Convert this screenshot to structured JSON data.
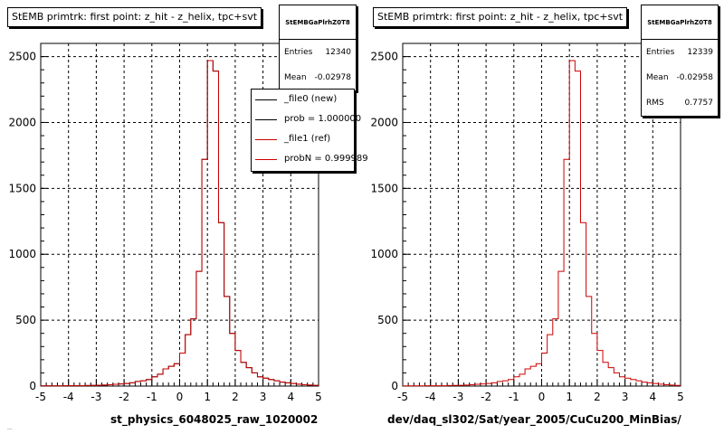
{
  "colors": {
    "ref_line": "#cc0000",
    "new_line": "#000000",
    "grid": "#000000"
  },
  "footer_text": "...",
  "panels": [
    {
      "title": "StEMB primtrk: first point: z_hit - z_helix, tpc+svt",
      "stats": {
        "name": "StEMBGaPlrhZ0T8",
        "rows": [
          {
            "label": "Entries",
            "value": "12340"
          },
          {
            "label": "Mean",
            "value": "-0.02978"
          }
        ]
      },
      "legend": [
        {
          "label": "_file0 (new)",
          "color": "#000000"
        },
        {
          "label": "prob = 1.000000",
          "color": "#000000"
        },
        {
          "label": "_file1 (ref)",
          "color": "#cc0000"
        },
        {
          "label": "probN = 0.999989",
          "color": "#cc0000"
        }
      ],
      "xtitle": "st_physics_6048025_raw_1020002"
    },
    {
      "title": "StEMB primtrk: first point: z_hit - z_helix, tpc+svt",
      "stats": {
        "name": "StEMBGaPlrhZ0T8",
        "rows": [
          {
            "label": "Entries",
            "value": "12339"
          },
          {
            "label": "Mean",
            "value": "-0.02958"
          },
          {
            "label": "RMS",
            "value": "0.7757"
          }
        ]
      },
      "legend": [],
      "xtitle": "dev/daq_sl302/Sat/year_2005/CuCu200_MinBias/"
    }
  ],
  "chart_data": [
    {
      "type": "bar",
      "subtype": "histogram-step",
      "title": "StEMB primtrk: first point: z_hit - z_helix, tpc+svt",
      "xlabel": "st_physics_6048025_raw_1020002",
      "ylabel": "",
      "xlim": [
        -5,
        5
      ],
      "ylim": [
        0,
        2600
      ],
      "xticks": [
        -5,
        -4,
        -3,
        -2,
        -1,
        0,
        1,
        2,
        3,
        4,
        5
      ],
      "yticks": [
        0,
        500,
        1000,
        1500,
        2000,
        2500
      ],
      "grid": true,
      "bin_width": 0.2,
      "bin_edges_start": -5,
      "series": [
        {
          "name": "_file0 (new)",
          "values": [
            2,
            2,
            2,
            2,
            3,
            3,
            3,
            3,
            4,
            5,
            6,
            8,
            10,
            14,
            16,
            20,
            25,
            35,
            40,
            50,
            70,
            90,
            130,
            150,
            170,
            250,
            390,
            510,
            870,
            1720,
            2470,
            2390,
            1240,
            680,
            400,
            270,
            180,
            140,
            100,
            70,
            60,
            50,
            40,
            30,
            25,
            20,
            15,
            10,
            8,
            5
          ]
        },
        {
          "name": "_file1 (ref)",
          "values": [
            2,
            2,
            2,
            2,
            3,
            3,
            3,
            3,
            4,
            5,
            6,
            8,
            10,
            14,
            16,
            20,
            25,
            35,
            40,
            50,
            70,
            90,
            130,
            150,
            170,
            250,
            390,
            510,
            870,
            1720,
            2470,
            2390,
            1240,
            680,
            400,
            270,
            180,
            140,
            100,
            70,
            60,
            50,
            40,
            30,
            25,
            20,
            15,
            10,
            8,
            5
          ]
        }
      ]
    },
    {
      "type": "bar",
      "subtype": "histogram-step",
      "title": "StEMB primtrk: first point: z_hit - z_helix, tpc+svt",
      "xlabel": "dev/daq_sl302/Sat/year_2005/CuCu200_MinBias/",
      "ylabel": "",
      "xlim": [
        -5,
        5
      ],
      "ylim": [
        0,
        2600
      ],
      "xticks": [
        -5,
        -4,
        -3,
        -2,
        -1,
        0,
        1,
        2,
        3,
        4,
        5
      ],
      "yticks": [
        0,
        500,
        1000,
        1500,
        2000,
        2500
      ],
      "grid": true,
      "bin_width": 0.2,
      "bin_edges_start": -5,
      "series": [
        {
          "name": "",
          "values": [
            2,
            2,
            2,
            2,
            3,
            3,
            3,
            3,
            4,
            5,
            6,
            8,
            10,
            14,
            16,
            20,
            25,
            35,
            40,
            50,
            70,
            90,
            130,
            150,
            170,
            250,
            390,
            510,
            870,
            1720,
            2470,
            2390,
            1240,
            680,
            400,
            270,
            180,
            140,
            100,
            70,
            60,
            50,
            40,
            30,
            25,
            20,
            15,
            10,
            8,
            5
          ]
        }
      ]
    }
  ]
}
